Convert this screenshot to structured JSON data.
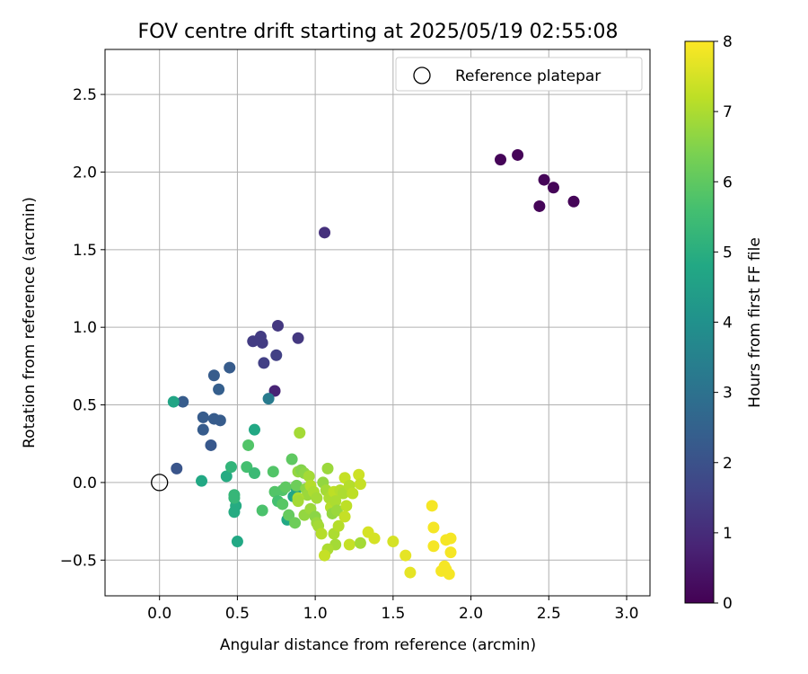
{
  "chart_data": {
    "type": "scatter",
    "title": "FOV centre drift starting at 2025/05/19 02:55:08",
    "xlabel": "Angular distance from reference (arcmin)",
    "ylabel": "Rotation from reference (arcmin)",
    "xlim": [
      -0.35,
      3.15
    ],
    "ylim": [
      -0.73,
      2.79
    ],
    "xticks": [
      0.0,
      0.5,
      1.0,
      1.5,
      2.0,
      2.5,
      3.0
    ],
    "xtick_labels": [
      "0.0",
      "0.5",
      "1.0",
      "1.5",
      "2.0",
      "2.5",
      "3.0"
    ],
    "yticks": [
      -0.5,
      0.0,
      0.5,
      1.0,
      1.5,
      2.0,
      2.5
    ],
    "ytick_labels": [
      "−0.5",
      "0.0",
      "0.5",
      "1.0",
      "1.5",
      "2.0",
      "2.5"
    ],
    "grid": true,
    "legend_position": "top-right",
    "legend": [
      {
        "label": "Reference platepar",
        "marker": "open-circle",
        "color": "#000000"
      }
    ],
    "reference_point": {
      "x": 0.0,
      "y": 0.0
    },
    "colorbar": {
      "label": "Hours from first FF file",
      "range": [
        0,
        8
      ],
      "ticks": [
        "0",
        "1",
        "2",
        "3",
        "4",
        "5",
        "6",
        "7",
        "8"
      ],
      "colormap": "viridis"
    },
    "points": [
      {
        "x": 2.19,
        "y": 2.08,
        "c": 0.1
      },
      {
        "x": 2.3,
        "y": 2.11,
        "c": 0.1
      },
      {
        "x": 2.47,
        "y": 1.95,
        "c": 0.1
      },
      {
        "x": 2.53,
        "y": 1.9,
        "c": 0.1
      },
      {
        "x": 2.44,
        "y": 1.78,
        "c": 0.1
      },
      {
        "x": 2.66,
        "y": 1.81,
        "c": 0.1
      },
      {
        "x": 1.06,
        "y": 1.61,
        "c": 1.1
      },
      {
        "x": 0.74,
        "y": 0.59,
        "c": 0.8
      },
      {
        "x": 0.76,
        "y": 1.01,
        "c": 1.3
      },
      {
        "x": 0.89,
        "y": 0.93,
        "c": 1.3
      },
      {
        "x": 0.65,
        "y": 0.94,
        "c": 1.4
      },
      {
        "x": 0.6,
        "y": 0.91,
        "c": 1.4
      },
      {
        "x": 0.66,
        "y": 0.9,
        "c": 1.4
      },
      {
        "x": 0.75,
        "y": 0.82,
        "c": 1.5
      },
      {
        "x": 0.67,
        "y": 0.77,
        "c": 1.5
      },
      {
        "x": 0.45,
        "y": 0.74,
        "c": 2.3
      },
      {
        "x": 0.35,
        "y": 0.69,
        "c": 2.3
      },
      {
        "x": 0.38,
        "y": 0.6,
        "c": 2.4
      },
      {
        "x": 0.15,
        "y": 0.52,
        "c": 2.3
      },
      {
        "x": 0.28,
        "y": 0.42,
        "c": 2.3
      },
      {
        "x": 0.35,
        "y": 0.41,
        "c": 2.3
      },
      {
        "x": 0.39,
        "y": 0.4,
        "c": 2.3
      },
      {
        "x": 0.28,
        "y": 0.34,
        "c": 2.3
      },
      {
        "x": 0.33,
        "y": 0.24,
        "c": 2.2
      },
      {
        "x": 0.11,
        "y": 0.09,
        "c": 2.1
      },
      {
        "x": 0.7,
        "y": 0.54,
        "c": 3.3
      },
      {
        "x": 0.09,
        "y": 0.52,
        "c": 4.7
      },
      {
        "x": 0.61,
        "y": 0.34,
        "c": 4.8
      },
      {
        "x": 0.27,
        "y": 0.01,
        "c": 4.8
      },
      {
        "x": 0.43,
        "y": 0.04,
        "c": 4.9
      },
      {
        "x": 0.49,
        "y": -0.15,
        "c": 4.9
      },
      {
        "x": 0.48,
        "y": -0.19,
        "c": 4.9
      },
      {
        "x": 0.5,
        "y": -0.38,
        "c": 4.8
      },
      {
        "x": 0.82,
        "y": -0.24,
        "c": 4.8
      },
      {
        "x": 0.88,
        "y": -0.04,
        "c": 4.6
      },
      {
        "x": 0.86,
        "y": -0.09,
        "c": 4.7
      },
      {
        "x": 0.46,
        "y": 0.1,
        "c": 5.2
      },
      {
        "x": 0.48,
        "y": -0.08,
        "c": 5.3
      },
      {
        "x": 0.48,
        "y": -0.1,
        "c": 5.3
      },
      {
        "x": 0.57,
        "y": 0.24,
        "c": 5.8
      },
      {
        "x": 0.56,
        "y": 0.1,
        "c": 5.6
      },
      {
        "x": 0.61,
        "y": 0.06,
        "c": 5.4
      },
      {
        "x": 0.66,
        "y": -0.18,
        "c": 5.7
      },
      {
        "x": 0.73,
        "y": 0.07,
        "c": 5.8
      },
      {
        "x": 0.74,
        "y": -0.06,
        "c": 5.8
      },
      {
        "x": 0.79,
        "y": -0.05,
        "c": 5.8
      },
      {
        "x": 0.76,
        "y": -0.12,
        "c": 5.6
      },
      {
        "x": 0.79,
        "y": -0.14,
        "c": 5.9
      },
      {
        "x": 0.81,
        "y": -0.03,
        "c": 6.0
      },
      {
        "x": 0.83,
        "y": -0.21,
        "c": 6.1
      },
      {
        "x": 0.85,
        "y": 0.15,
        "c": 6.0
      },
      {
        "x": 0.88,
        "y": -0.02,
        "c": 6.2
      },
      {
        "x": 0.87,
        "y": -0.26,
        "c": 6.2
      },
      {
        "x": 0.9,
        "y": 0.32,
        "c": 6.9
      },
      {
        "x": 0.89,
        "y": 0.07,
        "c": 6.7
      },
      {
        "x": 0.91,
        "y": 0.08,
        "c": 6.5
      },
      {
        "x": 0.93,
        "y": 0.06,
        "c": 6.6
      },
      {
        "x": 0.96,
        "y": 0.04,
        "c": 6.9
      },
      {
        "x": 0.94,
        "y": -0.04,
        "c": 6.6
      },
      {
        "x": 0.95,
        "y": -0.08,
        "c": 6.8
      },
      {
        "x": 0.97,
        "y": -0.02,
        "c": 7.1
      },
      {
        "x": 0.99,
        "y": -0.06,
        "c": 7.0
      },
      {
        "x": 1.01,
        "y": -0.1,
        "c": 6.9
      },
      {
        "x": 0.89,
        "y": -0.1,
        "c": 7.0
      },
      {
        "x": 0.89,
        "y": -0.12,
        "c": 6.9
      },
      {
        "x": 0.93,
        "y": -0.21,
        "c": 6.7
      },
      {
        "x": 0.97,
        "y": -0.17,
        "c": 6.8
      },
      {
        "x": 1.0,
        "y": -0.22,
        "c": 6.6
      },
      {
        "x": 1.01,
        "y": -0.26,
        "c": 6.8
      },
      {
        "x": 1.02,
        "y": -0.28,
        "c": 6.9
      },
      {
        "x": 1.04,
        "y": -0.33,
        "c": 7.1
      },
      {
        "x": 1.05,
        "y": 0.0,
        "c": 6.7
      },
      {
        "x": 1.07,
        "y": -0.05,
        "c": 6.9
      },
      {
        "x": 1.08,
        "y": 0.09,
        "c": 6.8
      },
      {
        "x": 1.09,
        "y": -0.1,
        "c": 7.0
      },
      {
        "x": 1.1,
        "y": -0.16,
        "c": 7.1
      },
      {
        "x": 1.12,
        "y": -0.06,
        "c": 7.2
      },
      {
        "x": 1.11,
        "y": -0.2,
        "c": 6.7
      },
      {
        "x": 1.13,
        "y": -0.12,
        "c": 7.0
      },
      {
        "x": 1.14,
        "y": -0.18,
        "c": 6.8
      },
      {
        "x": 1.12,
        "y": -0.33,
        "c": 7.0
      },
      {
        "x": 1.15,
        "y": -0.28,
        "c": 7.1
      },
      {
        "x": 1.13,
        "y": -0.4,
        "c": 6.9
      },
      {
        "x": 1.08,
        "y": -0.43,
        "c": 7.0
      },
      {
        "x": 1.06,
        "y": -0.47,
        "c": 7.3
      },
      {
        "x": 1.16,
        "y": -0.05,
        "c": 7.1
      },
      {
        "x": 1.18,
        "y": -0.07,
        "c": 7.0
      },
      {
        "x": 1.19,
        "y": 0.03,
        "c": 7.3
      },
      {
        "x": 1.2,
        "y": -0.15,
        "c": 7.2
      },
      {
        "x": 1.19,
        "y": -0.22,
        "c": 7.3
      },
      {
        "x": 1.22,
        "y": -0.02,
        "c": 7.1
      },
      {
        "x": 1.24,
        "y": -0.07,
        "c": 7.2
      },
      {
        "x": 1.22,
        "y": -0.4,
        "c": 7.3
      },
      {
        "x": 1.28,
        "y": 0.05,
        "c": 7.4
      },
      {
        "x": 1.29,
        "y": -0.01,
        "c": 7.3
      },
      {
        "x": 1.29,
        "y": -0.39,
        "c": 6.9
      },
      {
        "x": 1.34,
        "y": -0.32,
        "c": 7.5
      },
      {
        "x": 1.38,
        "y": -0.36,
        "c": 7.5
      },
      {
        "x": 1.5,
        "y": -0.38,
        "c": 7.5
      },
      {
        "x": 1.58,
        "y": -0.47,
        "c": 7.7
      },
      {
        "x": 1.61,
        "y": -0.58,
        "c": 7.7
      },
      {
        "x": 1.75,
        "y": -0.15,
        "c": 7.9
      },
      {
        "x": 1.76,
        "y": -0.29,
        "c": 7.9
      },
      {
        "x": 1.76,
        "y": -0.41,
        "c": 7.9
      },
      {
        "x": 1.81,
        "y": -0.57,
        "c": 7.9
      },
      {
        "x": 1.83,
        "y": -0.54,
        "c": 7.9
      },
      {
        "x": 1.84,
        "y": -0.37,
        "c": 7.9
      },
      {
        "x": 1.84,
        "y": -0.56,
        "c": 7.9
      },
      {
        "x": 1.86,
        "y": -0.59,
        "c": 7.9
      },
      {
        "x": 1.87,
        "y": -0.36,
        "c": 7.9
      },
      {
        "x": 1.87,
        "y": -0.45,
        "c": 7.9
      }
    ]
  }
}
